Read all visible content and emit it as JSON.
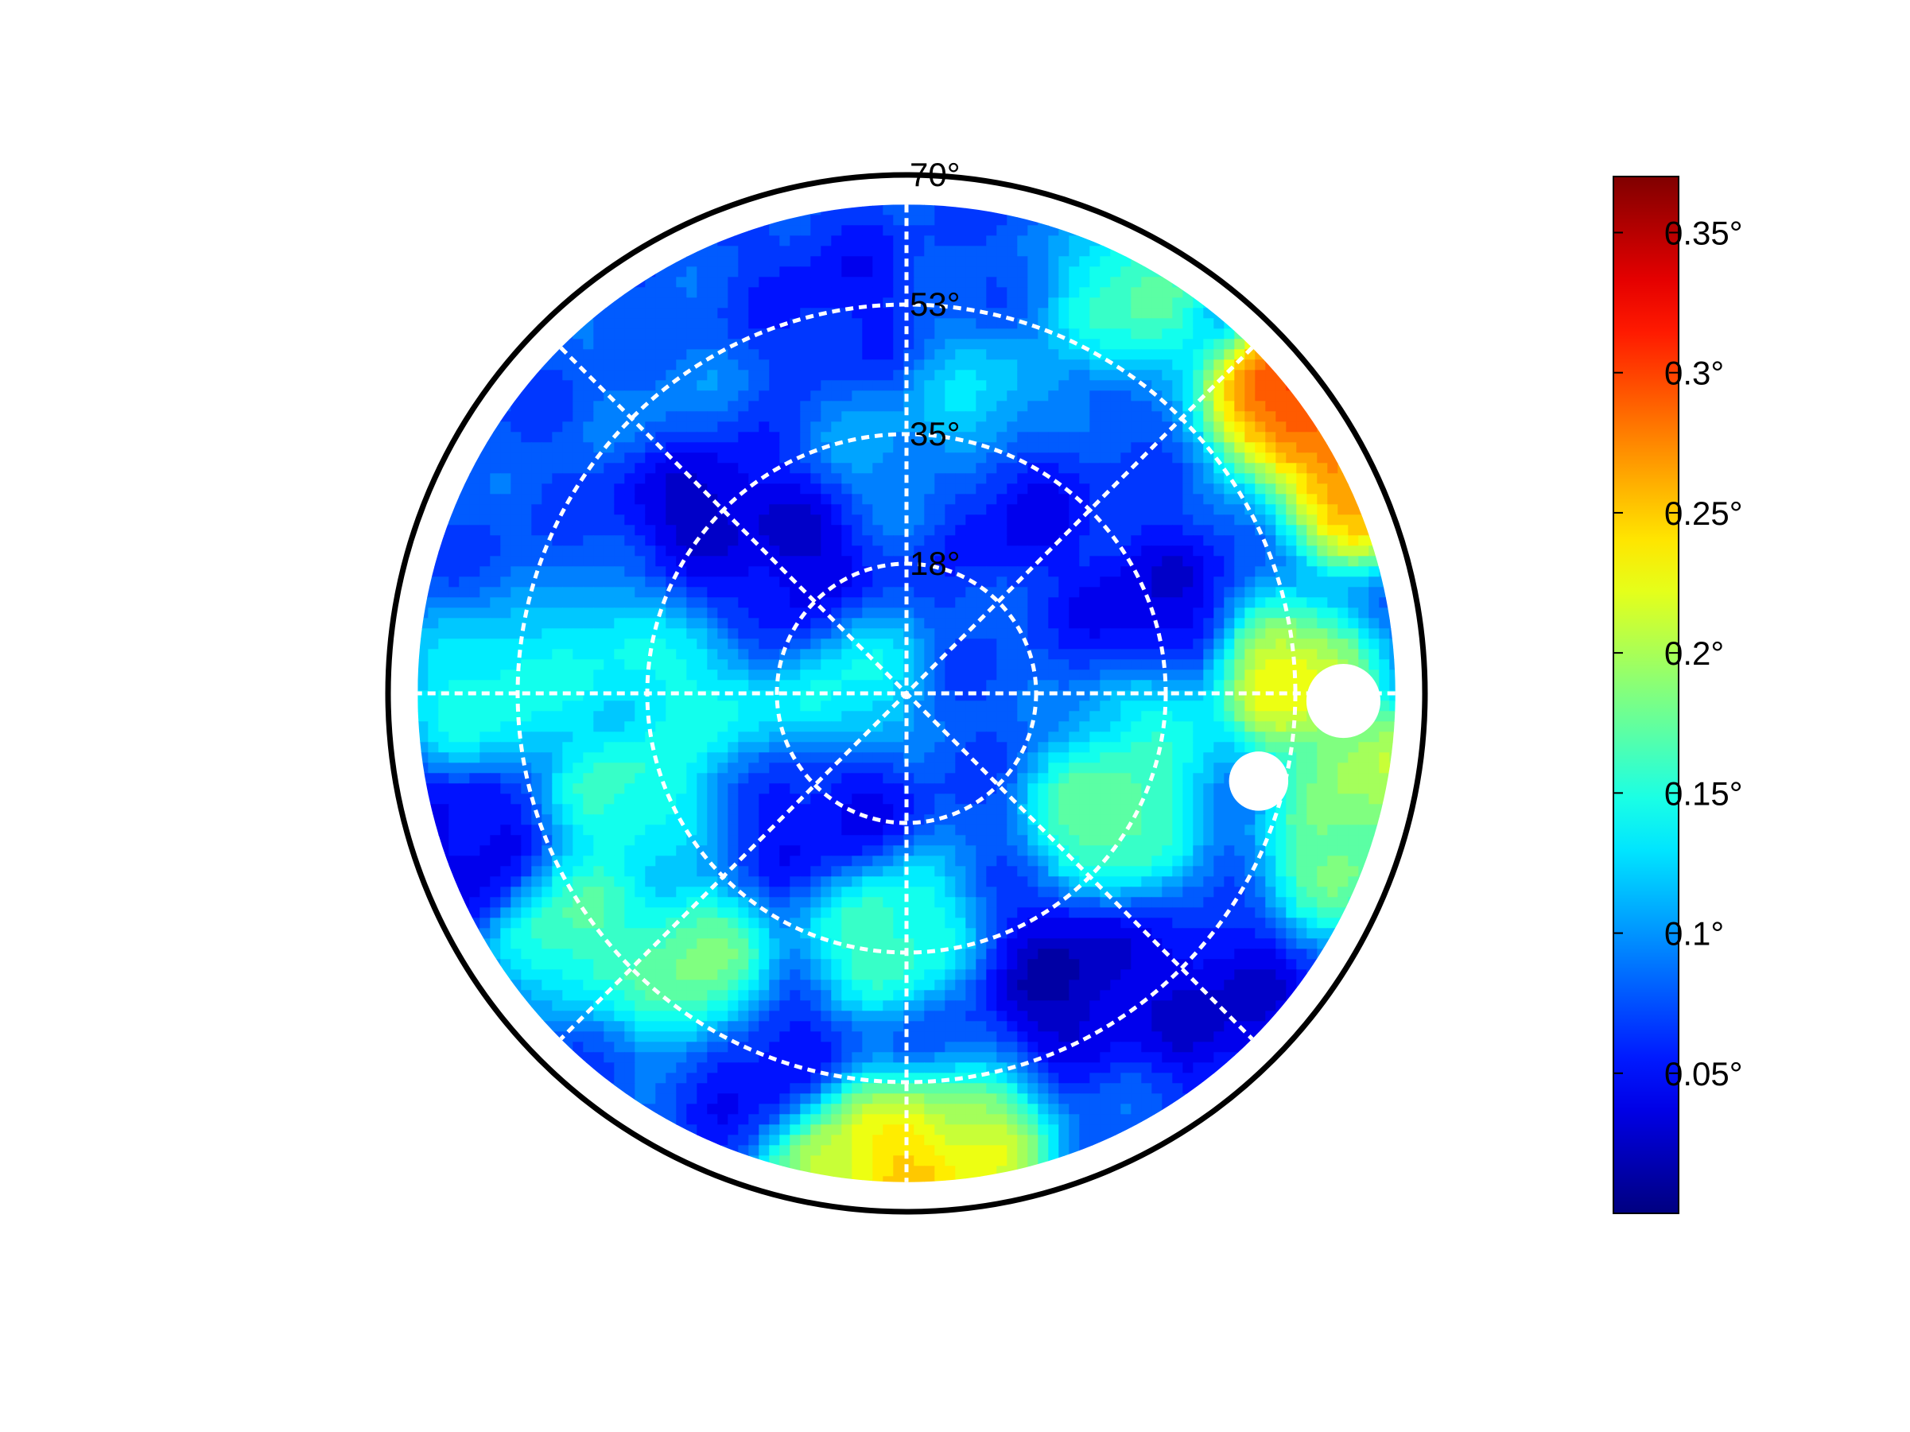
{
  "chart_data": {
    "type": "heatmap",
    "projection": "polar",
    "title": "",
    "radial_ticks": [
      "18°",
      "35°",
      "53°",
      "70°"
    ],
    "radial_tick_values": [
      17.5,
      35,
      52.5,
      70
    ],
    "r_max": 70,
    "angular_gridlines_deg": [
      0,
      45,
      90,
      135
    ],
    "grid": true,
    "colormap": "jet",
    "value_range": [
      0,
      0.37
    ],
    "colorbar": {
      "location": "right",
      "ticks": [
        "0.05°",
        "0.1°",
        "0.15°",
        "0.2°",
        "0.25°",
        "0.3°",
        "0.35°"
      ],
      "tick_values": [
        0.05,
        0.1,
        0.15,
        0.2,
        0.25,
        0.3,
        0.35
      ]
    },
    "data_coverage_r_max": 66,
    "hotspots": [
      {
        "angle_deg": 38,
        "r": 65,
        "value": 0.34
      },
      {
        "angle_deg": 25,
        "r": 67,
        "value": 0.3
      },
      {
        "angle_deg": 270,
        "r": 65,
        "value": 0.28
      },
      {
        "angle_deg": 262,
        "r": 63,
        "value": 0.24
      },
      {
        "angle_deg": 278,
        "r": 63,
        "value": 0.24
      },
      {
        "angle_deg": 2,
        "r": 52,
        "value": 0.25
      },
      {
        "angle_deg": 350,
        "r": 64,
        "value": 0.22
      },
      {
        "angle_deg": 340,
        "r": 63,
        "value": 0.2
      },
      {
        "angle_deg": 60,
        "r": 62,
        "value": 0.18
      },
      {
        "angle_deg": 180,
        "r": 57,
        "value": 0.16
      },
      {
        "angle_deg": 175,
        "r": 42,
        "value": 0.15
      },
      {
        "angle_deg": 178,
        "r": 26,
        "value": 0.16
      },
      {
        "angle_deg": 168,
        "r": 10,
        "value": 0.16
      },
      {
        "angle_deg": 200,
        "r": 40,
        "value": 0.17
      },
      {
        "angle_deg": 215,
        "r": 55,
        "value": 0.18
      },
      {
        "angle_deg": 232,
        "r": 47,
        "value": 0.2
      },
      {
        "angle_deg": 265,
        "r": 32,
        "value": 0.18
      },
      {
        "angle_deg": 330,
        "r": 32,
        "value": 0.2
      },
      {
        "angle_deg": 350,
        "r": 34,
        "value": 0.15
      },
      {
        "angle_deg": 75,
        "r": 40,
        "value": 0.13
      },
      {
        "angle_deg": 100,
        "r": 30,
        "value": 0.11
      },
      {
        "angle_deg": 130,
        "r": 48,
        "value": 0.1
      }
    ],
    "coldspots": [
      {
        "angle_deg": 135,
        "r": 40,
        "value": 0.01
      },
      {
        "angle_deg": 120,
        "r": 25,
        "value": 0.02
      },
      {
        "angle_deg": 300,
        "r": 45,
        "value": 0.01
      },
      {
        "angle_deg": 315,
        "r": 60,
        "value": 0.02
      },
      {
        "angle_deg": 20,
        "r": 35,
        "value": 0.03
      },
      {
        "angle_deg": 60,
        "r": 30,
        "value": 0.04
      },
      {
        "angle_deg": 150,
        "r": 20,
        "value": 0.03
      },
      {
        "angle_deg": 240,
        "r": 20,
        "value": 0.04
      },
      {
        "angle_deg": 200,
        "r": 63,
        "value": 0.03
      },
      {
        "angle_deg": 100,
        "r": 55,
        "value": 0.05
      },
      {
        "angle_deg": 250,
        "r": 55,
        "value": 0.04
      }
    ],
    "missing_regions": [
      {
        "angle_deg": 359,
        "r": 59,
        "radius": 5
      },
      {
        "angle_deg": 346,
        "r": 49,
        "radius": 4
      }
    ]
  }
}
